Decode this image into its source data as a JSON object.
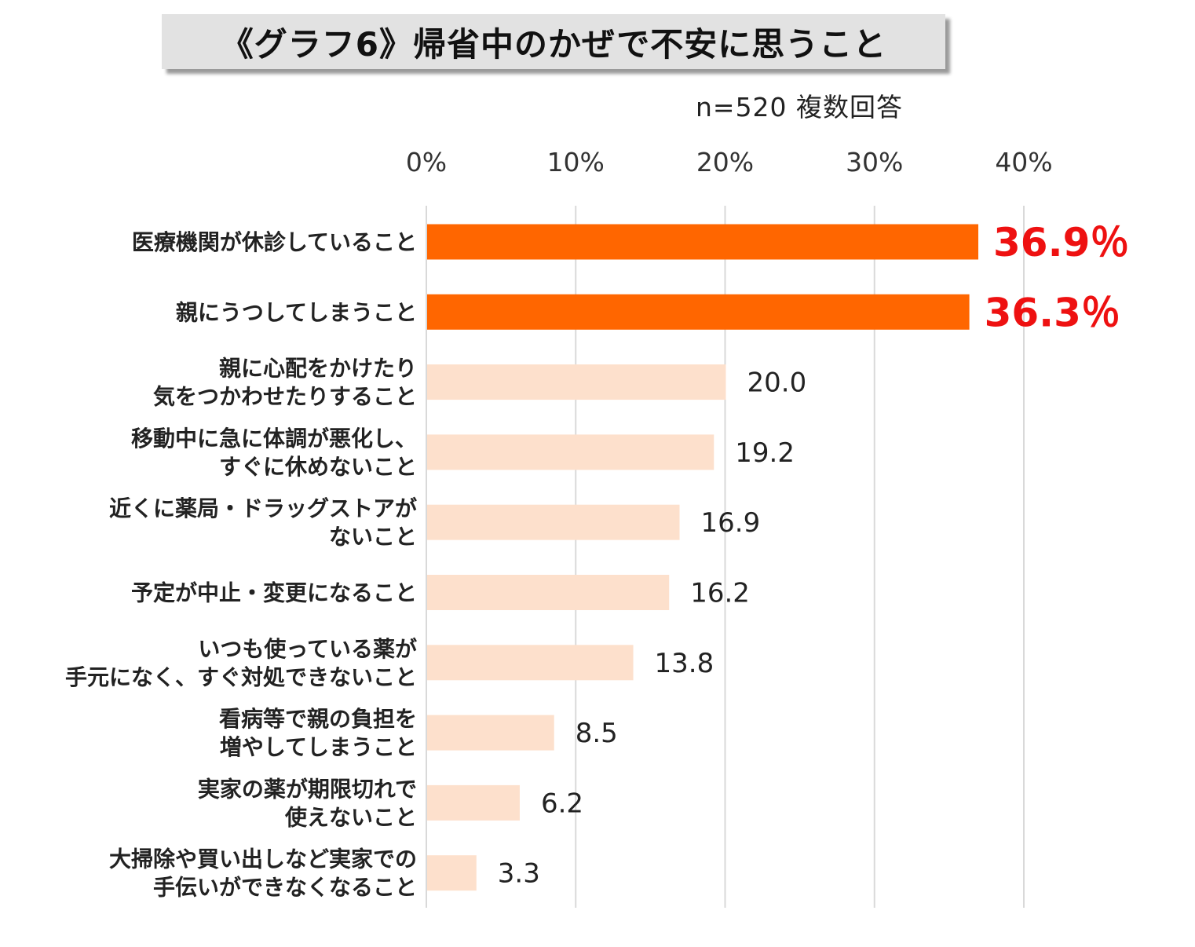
{
  "title": "《グラフ6》帰省中のかぜで不安に思うこと",
  "note": "n=520  複数回答",
  "colors": {
    "highlight": "#ff6600",
    "normal": "#fde0cc",
    "highlight_text": "#ee1111",
    "grid": "#d9d9d9"
  },
  "chart_data": {
    "type": "bar",
    "orientation": "horizontal",
    "title": "《グラフ6》帰省中のかぜで不安に思うこと",
    "xlim": [
      0,
      40
    ],
    "xticks": [
      "0%",
      "10%",
      "20%",
      "30%",
      "40%"
    ],
    "grid": true,
    "categories": [
      [
        "医療機関が休診していること"
      ],
      [
        "親にうつしてしまうこと"
      ],
      [
        "親に心配をかけたり",
        "気をつかわせたりすること"
      ],
      [
        "移動中に急に体調が悪化し、",
        "すぐに休めないこと"
      ],
      [
        "近くに薬局・ドラッグストアが",
        "ないこと"
      ],
      [
        "予定が中止・変更になること"
      ],
      [
        "いつも使っている薬が",
        "手元になく、すぐ対処できないこと"
      ],
      [
        "看病等で親の負担を",
        "増やしてしまうこと"
      ],
      [
        "実家の薬が期限切れで",
        "使えないこと"
      ],
      [
        "大掃除や買い出しなど実家での",
        "手伝いができなくなること"
      ]
    ],
    "values": [
      36.9,
      36.3,
      20.0,
      19.2,
      16.9,
      16.2,
      13.8,
      8.5,
      6.2,
      3.3
    ],
    "value_labels": [
      "36.9％",
      "36.3％",
      "20.0",
      "19.2",
      "16.9",
      "16.2",
      "13.8",
      "8.5",
      "6.2",
      "3.3"
    ],
    "highlighted": [
      true,
      true,
      false,
      false,
      false,
      false,
      false,
      false,
      false,
      false
    ]
  }
}
